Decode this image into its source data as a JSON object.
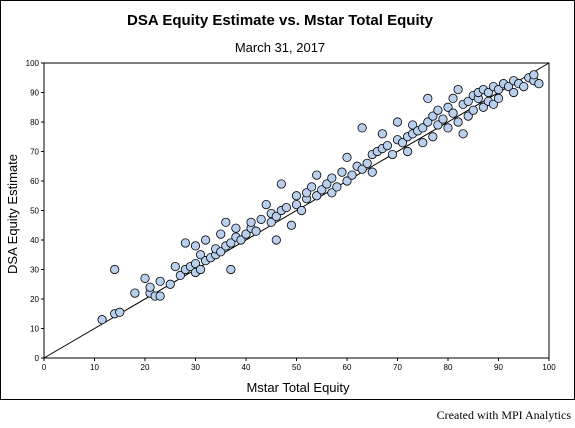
{
  "chart_data": {
    "type": "scatter",
    "title": "DSA Equity Estimate vs. Mstar Total Equity",
    "subtitle": "March 31, 2017",
    "xlabel": "Mstar Total Equity",
    "ylabel": "DSA Equity Estimate",
    "xlim": [
      0,
      100
    ],
    "ylim": [
      0,
      100
    ],
    "x_ticks": [
      "0",
      "10",
      "20",
      "30",
      "40",
      "50",
      "60",
      "70",
      "80",
      "90",
      "100"
    ],
    "y_ticks": [
      "0",
      "10",
      "20",
      "30",
      "40",
      "50",
      "60",
      "70",
      "80",
      "90",
      "100"
    ],
    "grid": false,
    "legend": "none",
    "reference_line": {
      "from": [
        0,
        0
      ],
      "to": [
        100,
        100
      ]
    },
    "marker_fill": "#b8cfee",
    "marker_stroke": "#000000",
    "points": [
      [
        11.5,
        13
      ],
      [
        14,
        15
      ],
      [
        15,
        15.5
      ],
      [
        14,
        30
      ],
      [
        18,
        22
      ],
      [
        20,
        27
      ],
      [
        21,
        22
      ],
      [
        21,
        24
      ],
      [
        22,
        21
      ],
      [
        23,
        21
      ],
      [
        23,
        26
      ],
      [
        25,
        25
      ],
      [
        26,
        31
      ],
      [
        27,
        28
      ],
      [
        28,
        30
      ],
      [
        28,
        39
      ],
      [
        29,
        31
      ],
      [
        30,
        29
      ],
      [
        30,
        32
      ],
      [
        30,
        38
      ],
      [
        31,
        30
      ],
      [
        31,
        35
      ],
      [
        32,
        33
      ],
      [
        32,
        40
      ],
      [
        33,
        34
      ],
      [
        34,
        35
      ],
      [
        34,
        37
      ],
      [
        35,
        36
      ],
      [
        35,
        42
      ],
      [
        36,
        38
      ],
      [
        36,
        46
      ],
      [
        37,
        30
      ],
      [
        37,
        39
      ],
      [
        38,
        41
      ],
      [
        38,
        44
      ],
      [
        39,
        40
      ],
      [
        40,
        42
      ],
      [
        41,
        44
      ],
      [
        41,
        46
      ],
      [
        42,
        43
      ],
      [
        43,
        47
      ],
      [
        44,
        52
      ],
      [
        45,
        46
      ],
      [
        45,
        49
      ],
      [
        46,
        48
      ],
      [
        46,
        40
      ],
      [
        47,
        50
      ],
      [
        47,
        59
      ],
      [
        48,
        51
      ],
      [
        49,
        45
      ],
      [
        50,
        52
      ],
      [
        50,
        55
      ],
      [
        51,
        50
      ],
      [
        52,
        54
      ],
      [
        52,
        56
      ],
      [
        53,
        58
      ],
      [
        54,
        55
      ],
      [
        54,
        62
      ],
      [
        55,
        57
      ],
      [
        56,
        59
      ],
      [
        57,
        56
      ],
      [
        57,
        61
      ],
      [
        58,
        58
      ],
      [
        59,
        63
      ],
      [
        60,
        60
      ],
      [
        60,
        68
      ],
      [
        61,
        62
      ],
      [
        62,
        65
      ],
      [
        63,
        64
      ],
      [
        63,
        78
      ],
      [
        64,
        66
      ],
      [
        65,
        69
      ],
      [
        65,
        63
      ],
      [
        66,
        70
      ],
      [
        67,
        71
      ],
      [
        67,
        76
      ],
      [
        68,
        72
      ],
      [
        69,
        69
      ],
      [
        70,
        74
      ],
      [
        70,
        80
      ],
      [
        71,
        73
      ],
      [
        72,
        75
      ],
      [
        72,
        70
      ],
      [
        73,
        76
      ],
      [
        73,
        79
      ],
      [
        74,
        77
      ],
      [
        75,
        78
      ],
      [
        75,
        73
      ],
      [
        76,
        80
      ],
      [
        76,
        88
      ],
      [
        77,
        82
      ],
      [
        77,
        75
      ],
      [
        78,
        84
      ],
      [
        78,
        79
      ],
      [
        79,
        81
      ],
      [
        80,
        85
      ],
      [
        80,
        78
      ],
      [
        81,
        83
      ],
      [
        81,
        88
      ],
      [
        82,
        91
      ],
      [
        82,
        80
      ],
      [
        83,
        86
      ],
      [
        83,
        76
      ],
      [
        84,
        87
      ],
      [
        84,
        82
      ],
      [
        85,
        89
      ],
      [
        85,
        84
      ],
      [
        86,
        88
      ],
      [
        86,
        90
      ],
      [
        87,
        91
      ],
      [
        87,
        85
      ],
      [
        88,
        90
      ],
      [
        88,
        87
      ],
      [
        89,
        92
      ],
      [
        89,
        86
      ],
      [
        90,
        91
      ],
      [
        90,
        88
      ],
      [
        91,
        93
      ],
      [
        92,
        92
      ],
      [
        93,
        90
      ],
      [
        93,
        94
      ],
      [
        94,
        93
      ],
      [
        95,
        92
      ],
      [
        96,
        95
      ],
      [
        97,
        94
      ],
      [
        97,
        96
      ],
      [
        98,
        93
      ]
    ]
  },
  "footer": {
    "credit": "Created with MPI Analytics"
  }
}
